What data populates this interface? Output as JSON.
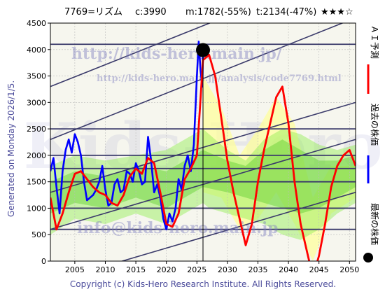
{
  "header": {
    "code_name": "7769=リズム",
    "current": "c:3990",
    "min_stat": "m:1782(-55%)",
    "target_stat": "t:2134(-47%)",
    "rating": "★★★☆"
  },
  "left_label": "Generated on Monday 2026/1/5.",
  "footer": "Copyright (c) Kids-Hero Research Institute. All Rights Reserved.",
  "watermarks": {
    "url_main": "http://kids-hero.main.jp/",
    "url_analysis": "http://kids-hero.main.jp/analysis/code7769.html",
    "email": "info@kids-hero.main.jp",
    "logo": "Kids-Hero"
  },
  "legend": [
    {
      "label": "ＡＩ予測",
      "color": "#ff0000"
    },
    {
      "label": "過去の株価",
      "color": "#0000ff"
    },
    {
      "label": "最新の株価",
      "color": "#000000"
    }
  ],
  "colors": {
    "ai_forecast": "#ff0000",
    "past_price": "#0000ff",
    "latest_price": "#000000",
    "band_green": "#90ee50",
    "band_yellow": "#ffff99",
    "trend_lines": "#3a3a6a"
  },
  "chart_data": {
    "type": "line",
    "xlim": [
      2001,
      2051
    ],
    "ylim": [
      0,
      4500
    ],
    "x_ticks": [
      2005,
      2010,
      2015,
      2020,
      2025,
      2030,
      2035,
      2040,
      2045,
      2050
    ],
    "y_ticks": [
      0,
      500,
      1000,
      1500,
      2000,
      2500,
      3000,
      3500,
      4000,
      4500
    ],
    "horizontal_levels": [
      600,
      1000,
      1500,
      1750,
      2000,
      2500,
      4100
    ],
    "trend_lines": [
      {
        "x": [
          2001,
          2051
        ],
        "y": [
          3300,
          5600
        ]
      },
      {
        "x": [
          2001,
          2051
        ],
        "y": [
          2300,
          4600
        ]
      },
      {
        "x": [
          2001,
          2051
        ],
        "y": [
          1300,
          3000
        ]
      },
      {
        "x": [
          2001,
          2051
        ],
        "y": [
          600,
          2300
        ]
      },
      {
        "x": [
          2001,
          2051
        ],
        "y": [
          -400,
          1300
        ]
      }
    ],
    "latest": {
      "x": 2026.0,
      "y": 3990
    },
    "series": [
      {
        "name": "過去の株価",
        "x": [
          2001,
          2001.5,
          2002,
          2002.5,
          2003,
          2003.5,
          2004,
          2004.5,
          2005,
          2005.5,
          2006,
          2006.5,
          2007,
          2007.5,
          2008,
          2008.5,
          2009,
          2009.5,
          2010,
          2010.5,
          2011,
          2011.5,
          2012,
          2012.5,
          2013,
          2013.5,
          2014,
          2014.5,
          2015,
          2015.5,
          2016,
          2016.5,
          2017,
          2017.5,
          2018,
          2018.5,
          2019,
          2019.5,
          2020,
          2020.5,
          2021,
          2021.5,
          2022,
          2022.5,
          2023,
          2023.5,
          2024,
          2024.5,
          2025,
          2025.3,
          2025.6,
          2025.9,
          2026.0
        ],
        "y": [
          1700,
          1950,
          1400,
          900,
          1700,
          2100,
          2300,
          2050,
          2400,
          2250,
          2000,
          1500,
          1150,
          1200,
          1250,
          1350,
          1500,
          1800,
          1350,
          1050,
          1100,
          1450,
          1550,
          1300,
          1350,
          1700,
          1650,
          1500,
          1850,
          1700,
          1450,
          1500,
          2350,
          1900,
          1300,
          1450,
          1200,
          800,
          600,
          900,
          750,
          1000,
          1550,
          1350,
          1800,
          2000,
          1700,
          2200,
          3500,
          4150,
          3600,
          3300,
          3990
        ]
      },
      {
        "name": "ＡＩ予測",
        "x": [
          2001,
          2002,
          2003,
          2004,
          2005,
          2006,
          2007,
          2008,
          2009,
          2010,
          2011,
          2012,
          2013,
          2014,
          2015,
          2016,
          2017,
          2018,
          2019,
          2020,
          2021,
          2022,
          2023,
          2024,
          2025,
          2026,
          2027,
          2028,
          2029,
          2030,
          2031,
          2032,
          2033,
          2034,
          2035,
          2036,
          2037,
          2038,
          2039,
          2040,
          2041,
          2042,
          2043,
          2044,
          2045,
          2046,
          2047,
          2048,
          2049,
          2050,
          2051
        ],
        "y": [
          1200,
          600,
          900,
          1300,
          1650,
          1700,
          1550,
          1400,
          1300,
          1250,
          1100,
          1050,
          1250,
          1600,
          1750,
          1650,
          1950,
          1850,
          1300,
          700,
          650,
          900,
          1550,
          1750,
          2000,
          3800,
          3900,
          3500,
          2700,
          1900,
          1300,
          800,
          300,
          700,
          1500,
          2100,
          2600,
          3100,
          3300,
          2600,
          1500,
          700,
          200,
          -300,
          100,
          700,
          1400,
          1800,
          2000,
          2100,
          1800
        ]
      }
    ],
    "band_outer": {
      "x": [
        2001,
        2005,
        2010,
        2015,
        2020,
        2023,
        2026,
        2027,
        2030,
        2033,
        2036,
        2039,
        2042,
        2045,
        2048,
        2051
      ],
      "upper": [
        1800,
        2000,
        1900,
        2000,
        2100,
        2300,
        2500,
        2400,
        2100,
        1900,
        2300,
        2500,
        2400,
        2200,
        2100,
        2200
      ],
      "lower": [
        500,
        800,
        700,
        900,
        700,
        900,
        1100,
        1000,
        900,
        800,
        700,
        500,
        400,
        600,
        900,
        1100
      ]
    },
    "band_inner": {
      "x": [
        2001,
        2005,
        2010,
        2015,
        2020,
        2023,
        2026,
        2030,
        2033,
        2036,
        2039,
        2042,
        2045,
        2048,
        2051
      ],
      "upper": [
        1500,
        1700,
        1600,
        1800,
        1700,
        1900,
        2100,
        1900,
        1800,
        2100,
        2300,
        2100,
        1900,
        1900,
        2000
      ],
      "lower": [
        900,
        1100,
        1000,
        1200,
        1000,
        1200,
        1400,
        1300,
        1200,
        1100,
        1000,
        900,
        1000,
        1200,
        1400
      ]
    },
    "yellow_area": {
      "x": [
        2026,
        2029,
        2032,
        2035,
        2038,
        2041,
        2044,
        2047,
        2051
      ],
      "upper": [
        3500,
        2900,
        2000,
        2500,
        3100,
        2600,
        1200,
        1800,
        1800
      ],
      "lower": [
        1300,
        1200,
        600,
        800,
        1300,
        700,
        0,
        900,
        1200
      ]
    }
  }
}
